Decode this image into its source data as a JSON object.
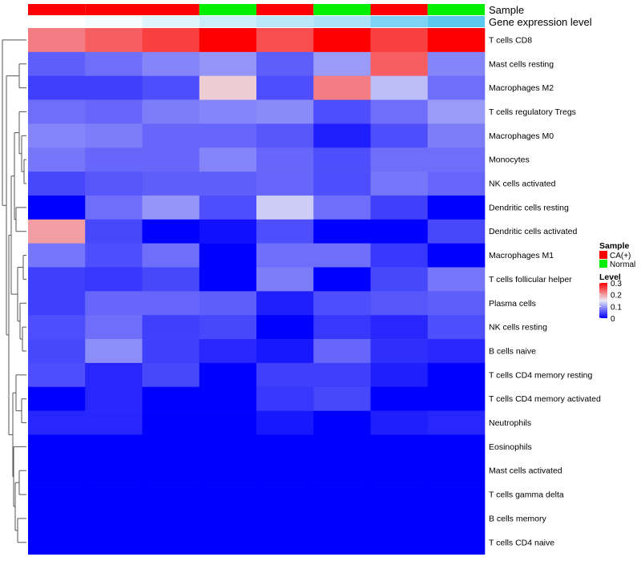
{
  "chart_data": {
    "type": "heatmap",
    "annotation_rows": [
      "Sample",
      "Gene expression level"
    ],
    "columns": [
      {
        "sample": "CA(+)",
        "expression": 0.0
      },
      {
        "sample": "CA(+)",
        "expression": 0.03
      },
      {
        "sample": "CA(+)",
        "expression": 0.1
      },
      {
        "sample": "Normal",
        "expression": 0.16
      },
      {
        "sample": "CA(+)",
        "expression": 0.22
      },
      {
        "sample": "Normal",
        "expression": 0.26
      },
      {
        "sample": "CA(+)",
        "expression": 0.4
      },
      {
        "sample": "Normal",
        "expression": 0.5
      }
    ],
    "rows": [
      "T cells CD8",
      "Mast cells resting",
      "Macrophages M2",
      "T cells regulatory  Tregs",
      "Macrophages M0",
      "Monocytes",
      "NK cells activated",
      "Dendritic cells resting",
      "Dendritic cells activated",
      "Macrophages M1",
      "T cells follicular helper",
      "Plasma cells",
      "NK cells resting",
      "B cells naive",
      "T cells CD4 memory resting",
      "T cells CD4 memory activated",
      "Neutrophils",
      "Eosinophils",
      "Mast cells activated",
      "T cells gamma delta",
      "B cells memory",
      "T cells CD4 naive"
    ],
    "values": [
      [
        0.22,
        0.24,
        0.26,
        0.3,
        0.25,
        0.3,
        0.26,
        0.3
      ],
      [
        0.06,
        0.07,
        0.085,
        0.095,
        0.06,
        0.098,
        0.24,
        0.085
      ],
      [
        0.04,
        0.04,
        0.05,
        0.17,
        0.05,
        0.22,
        0.12,
        0.07
      ],
      [
        0.07,
        0.065,
        0.08,
        0.085,
        0.088,
        0.05,
        0.07,
        0.098
      ],
      [
        0.085,
        0.08,
        0.065,
        0.065,
        0.055,
        0.02,
        0.05,
        0.08
      ],
      [
        0.075,
        0.065,
        0.065,
        0.085,
        0.065,
        0.05,
        0.07,
        0.07
      ],
      [
        0.045,
        0.055,
        0.06,
        0.06,
        0.065,
        0.05,
        0.075,
        0.065
      ],
      [
        0.0,
        0.07,
        0.095,
        0.05,
        0.13,
        0.07,
        0.04,
        0.0
      ],
      [
        0.2,
        0.045,
        0.0,
        0.01,
        0.05,
        0.0,
        0.0,
        0.045
      ],
      [
        0.075,
        0.05,
        0.07,
        0.0,
        0.07,
        0.07,
        0.035,
        0.0
      ],
      [
        0.04,
        0.035,
        0.045,
        0.0,
        0.08,
        0.0,
        0.045,
        0.075
      ],
      [
        0.04,
        0.065,
        0.065,
        0.06,
        0.02,
        0.05,
        0.055,
        0.06
      ],
      [
        0.05,
        0.07,
        0.04,
        0.045,
        0.0,
        0.035,
        0.025,
        0.05
      ],
      [
        0.045,
        0.09,
        0.04,
        0.025,
        0.015,
        0.065,
        0.03,
        0.025
      ],
      [
        0.05,
        0.025,
        0.045,
        0.0,
        0.04,
        0.04,
        0.02,
        0.0
      ],
      [
        0.0,
        0.025,
        0.0,
        0.0,
        0.035,
        0.045,
        0.0,
        0.0
      ],
      [
        0.025,
        0.025,
        0.0,
        0.0,
        0.015,
        0.0,
        0.02,
        0.025
      ],
      [
        0.0,
        0.0,
        0.0,
        0.0,
        0.0,
        0.0,
        0.0,
        0.0
      ],
      [
        0.0,
        0.0,
        0.0,
        0.0,
        0.0,
        0.0,
        0.0,
        0.0
      ],
      [
        0.0,
        0.0,
        0.0,
        0.0,
        0.0,
        0.0,
        0.0,
        0.0
      ],
      [
        0.0,
        0.0,
        0.0,
        0.0,
        0.0,
        0.0,
        0.0,
        0.0
      ],
      [
        0.0,
        0.0,
        0.0,
        0.0,
        0.0,
        0.0,
        0.0,
        0.0
      ]
    ],
    "color_scale": {
      "low": "#0000ff",
      "mid": "#ebebf5",
      "high": "#ff0000",
      "min": 0,
      "mid_value": 0.15,
      "max": 0.3
    },
    "expression_scale": {
      "low": "#ffffff",
      "high": "#5bc8f0",
      "min": 0,
      "max": 0.5
    },
    "legend": {
      "sample_title": "Sample",
      "sample_entries": [
        {
          "label": "CA(+)",
          "color": "#ff0000"
        },
        {
          "label": "Normal",
          "color": "#00ee00"
        }
      ],
      "level_title": "Level",
      "level_ticks": [
        "0.3",
        "0.2",
        "0.1",
        "0"
      ],
      "placement": "right"
    },
    "row_dendrogram": true,
    "grid": false
  }
}
